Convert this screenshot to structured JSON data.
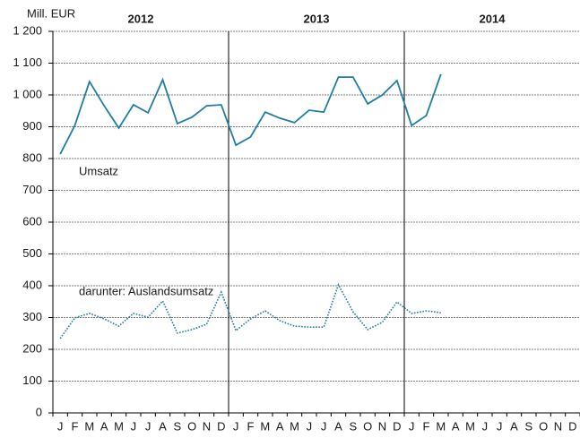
{
  "chart_data": {
    "type": "line",
    "y_label": "Mill. EUR",
    "years": [
      "2012",
      "2013",
      "2014"
    ],
    "categories": [
      "J",
      "F",
      "M",
      "A",
      "M",
      "J",
      "J",
      "A",
      "S",
      "O",
      "N",
      "D",
      "J",
      "F",
      "M",
      "A",
      "M",
      "J",
      "J",
      "A",
      "S",
      "O",
      "N",
      "D",
      "J",
      "F",
      "M",
      "A",
      "M",
      "J",
      "J",
      "A",
      "S",
      "O",
      "N",
      "D"
    ],
    "series": [
      {
        "name": "Umsatz",
        "color": "#1f7ea1",
        "style": "solid",
        "values": [
          814,
          904,
          1042,
          966,
          896,
          969,
          944,
          1048,
          910,
          930,
          966,
          969,
          842,
          868,
          946,
          927,
          913,
          952,
          946,
          1056,
          1056,
          972,
          1000,
          1045,
          904,
          935,
          1065,
          null,
          null,
          null,
          null,
          null,
          null,
          null,
          null,
          null
        ]
      },
      {
        "name": "darunter: Auslandsumsatz",
        "color": "#1f7ea1",
        "style": "dotted",
        "values": [
          234,
          299,
          313,
          296,
          273,
          313,
          301,
          352,
          251,
          262,
          279,
          380,
          259,
          296,
          321,
          290,
          273,
          270,
          270,
          403,
          318,
          262,
          285,
          349,
          313,
          321,
          315,
          null,
          null,
          null,
          null,
          null,
          null,
          null,
          null,
          null
        ]
      }
    ],
    "ylim": [
      0,
      1200
    ],
    "yticks": [
      0,
      100,
      200,
      300,
      400,
      500,
      600,
      700,
      800,
      900,
      {
        "value": 1000,
        "label": "1 000"
      },
      {
        "value": 1100,
        "label": "1 100"
      },
      {
        "value": 1200,
        "label": "1 200"
      }
    ],
    "grid": true
  }
}
